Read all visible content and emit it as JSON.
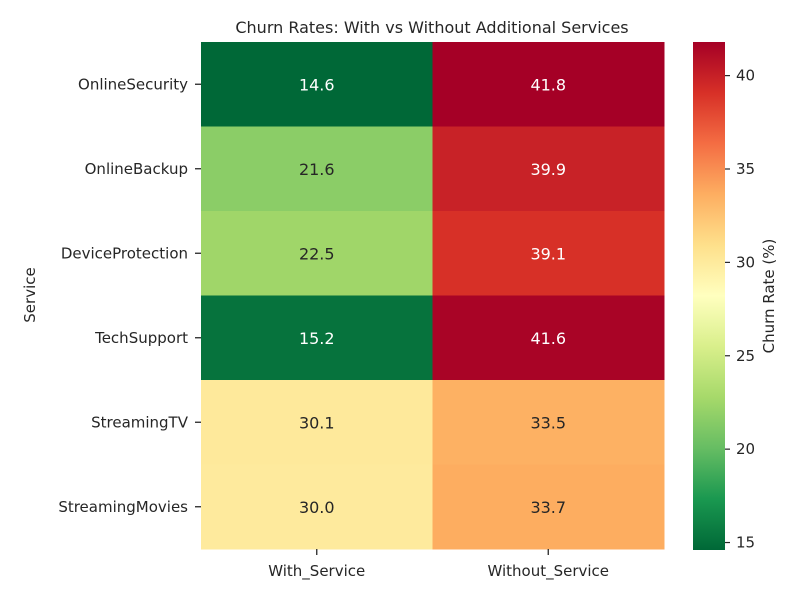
{
  "chart_data": {
    "type": "heatmap",
    "title": "Churn Rates: With vs Without Additional Services",
    "xlabel": "",
    "ylabel": "Service",
    "x_categories": [
      "With_Service",
      "Without_Service"
    ],
    "y_categories": [
      "OnlineSecurity",
      "OnlineBackup",
      "DeviceProtection",
      "TechSupport",
      "StreamingTV",
      "StreamingMovies"
    ],
    "values": [
      [
        14.6,
        41.8
      ],
      [
        21.6,
        39.9
      ],
      [
        22.5,
        39.1
      ],
      [
        15.2,
        41.6
      ],
      [
        30.1,
        33.5
      ],
      [
        30.0,
        33.7
      ]
    ],
    "colorbar": {
      "label": "Churn Rate (%)",
      "ticks": [
        15,
        20,
        25,
        30,
        35,
        40
      ],
      "range": [
        14.6,
        41.8
      ],
      "colormap": "RdYlGn_r"
    },
    "grid": false
  }
}
